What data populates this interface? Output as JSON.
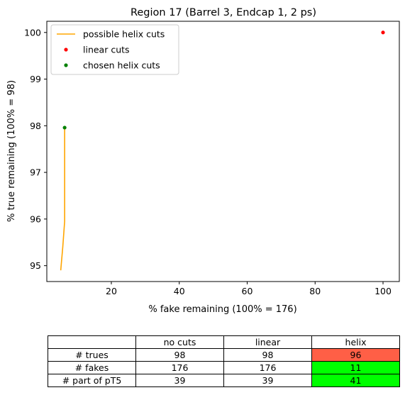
{
  "chart_data": {
    "type": "line",
    "title": "Region 17 (Barrel 3, Endcap 1, 2 ps)",
    "xlabel": "% fake remaining (100% = 176)",
    "ylabel": "% true remaining (100% = 98)",
    "xlim": [
      1.0,
      104.8
    ],
    "ylim": [
      94.66,
      100.24
    ],
    "xticks": [
      20,
      40,
      60,
      80,
      100
    ],
    "yticks": [
      95,
      96,
      97,
      98,
      99,
      100
    ],
    "grid": false,
    "legend_position": "top-left",
    "series": [
      {
        "name": "possible helix cuts",
        "kind": "line",
        "color": "#ffa500",
        "x": [
          5.1,
          5.7,
          6.25,
          6.25
        ],
        "y": [
          94.9,
          95.4,
          95.95,
          97.96
        ]
      },
      {
        "name": "linear cuts",
        "kind": "point",
        "color": "#ff0000",
        "x": [
          100
        ],
        "y": [
          100
        ]
      },
      {
        "name": "chosen helix cuts",
        "kind": "point",
        "color": "#008000",
        "x": [
          6.25
        ],
        "y": [
          97.96
        ]
      }
    ]
  },
  "table": {
    "headers": [
      "",
      "no cuts",
      "linear",
      "helix"
    ],
    "rows": [
      {
        "label": "# trues",
        "values": [
          "98",
          "98",
          "96"
        ],
        "helix_color": "#ff5f46"
      },
      {
        "label": "# fakes",
        "values": [
          "176",
          "176",
          "11"
        ],
        "helix_color": "#00ff00"
      },
      {
        "label": "# part of pT5",
        "values": [
          "39",
          "39",
          "41"
        ],
        "helix_color": "#00ff00"
      }
    ]
  }
}
